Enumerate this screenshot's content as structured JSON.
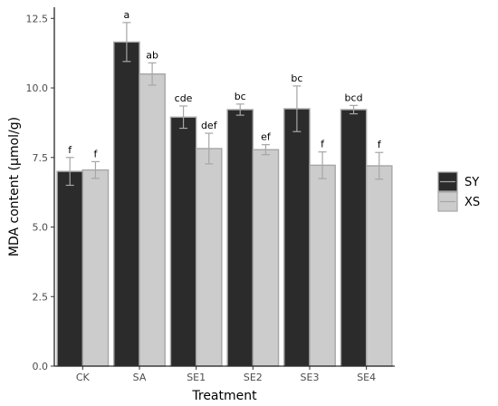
{
  "chart_data": {
    "type": "bar",
    "xlabel": "Treatment",
    "ylabel": "MDA content (μmol/g)",
    "ylim": [
      0,
      12.9
    ],
    "yticks": [
      "0.0",
      "2.5",
      "5.0",
      "7.5",
      "10.0",
      "12.5"
    ],
    "ytick_values": [
      0,
      2.5,
      5,
      7.5,
      10,
      12.5
    ],
    "categories": [
      "CK",
      "SA",
      "SE1",
      "SE2",
      "SE3",
      "SE4"
    ],
    "grid": false,
    "legend_position": "right",
    "series": [
      {
        "name": "SY",
        "color": "#2b2b2b",
        "values": [
          7.0,
          11.65,
          8.95,
          9.22,
          9.25,
          9.22
        ],
        "errors": [
          0.5,
          0.7,
          0.4,
          0.2,
          0.82,
          0.15
        ],
        "labels": [
          "f",
          "a",
          "cde",
          "bc",
          "bc",
          "bcd"
        ]
      },
      {
        "name": "XS",
        "color": "#cccccc",
        "values": [
          7.05,
          10.5,
          7.82,
          7.78,
          7.22,
          7.2
        ],
        "errors": [
          0.3,
          0.4,
          0.55,
          0.18,
          0.48,
          0.48
        ],
        "labels": [
          "f",
          "ab",
          "def",
          "ef",
          "f",
          "f"
        ]
      }
    ]
  }
}
